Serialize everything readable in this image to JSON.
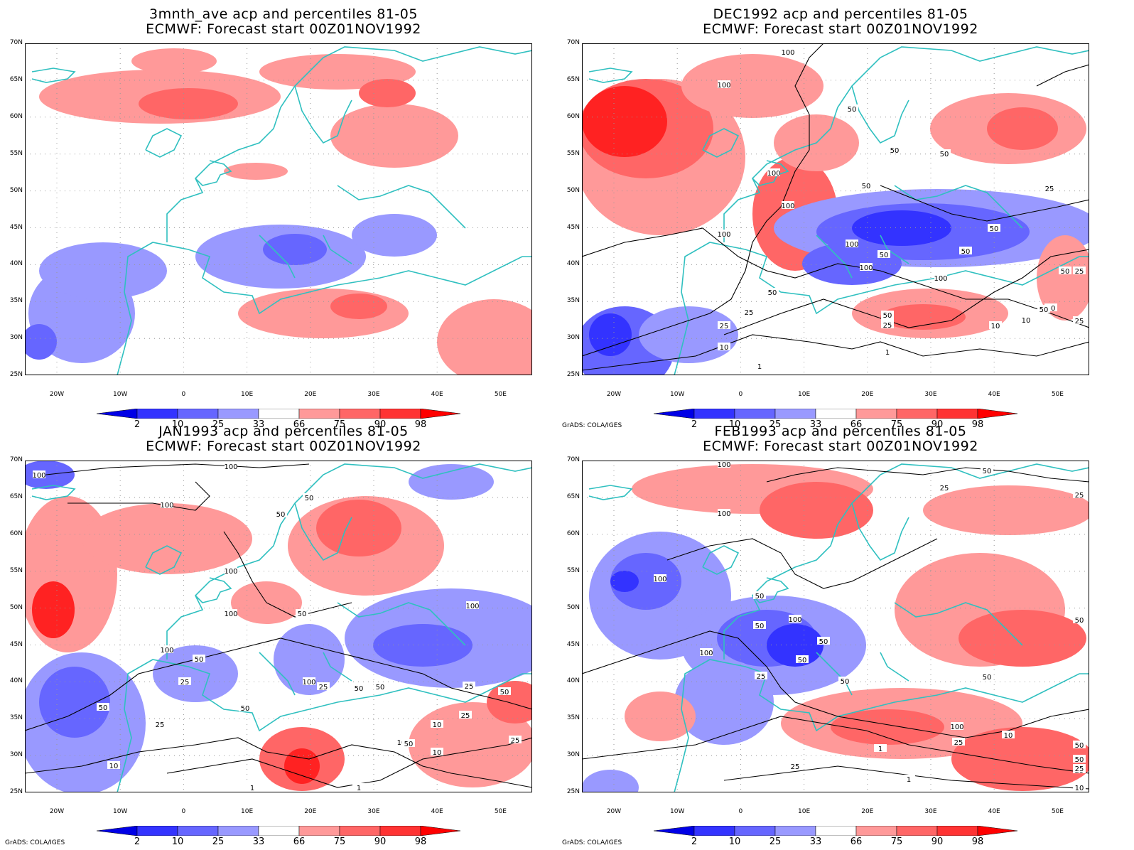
{
  "panels": [
    {
      "title_line1": "3mnth_ave acp and percentiles 81-05",
      "title_line2": "ECMWF: Forecast start 00Z01NOV1992",
      "credit": "",
      "contour_labels": []
    },
    {
      "title_line1": "DEC1992 acp and percentiles 81-05",
      "title_line2": "ECMWF: Forecast start 00Z01NOV1992",
      "credit": "GrADS: COLA/IGES",
      "contour_labels": [
        "100",
        "100",
        "50",
        "50",
        "50",
        "100",
        "100",
        "50",
        "100",
        "25",
        "50",
        "100",
        "50",
        "100",
        "50",
        "25",
        "100",
        "50",
        "50",
        "50",
        "50",
        "25",
        "25",
        "10",
        "10",
        "1",
        "1",
        "10",
        "25",
        "50",
        "25",
        "50"
      ]
    },
    {
      "title_line1": "JAN1993 acp and percentiles 81-05",
      "title_line2": "ECMWF: Forecast start 00Z01NOV1992",
      "credit": "GrADS: COLA/IGES",
      "contour_labels": [
        "100",
        "100",
        "100",
        "100",
        "50",
        "50",
        "100",
        "100",
        "50",
        "100",
        "50",
        "25",
        "100",
        "50",
        "25",
        "50",
        "50",
        "25",
        "25",
        "50",
        "10",
        "1",
        "1",
        "10",
        "50",
        "10",
        "25",
        "10",
        "50",
        "25"
      ]
    },
    {
      "title_line1": "FEB1993 acp and percentiles 81-05",
      "title_line2": "ECMWF: Forecast start 00Z01NOV1992",
      "credit": "GrADS: COLA/IGES",
      "contour_labels": [
        "100",
        "100",
        "100",
        "25",
        "50",
        "25",
        "100",
        "50",
        "50",
        "100",
        "50",
        "50",
        "25",
        "50",
        "50",
        "50",
        "100",
        "10",
        "50",
        "25",
        "10",
        "1",
        "1",
        "25",
        "25",
        "10",
        "50",
        "25",
        "10"
      ]
    }
  ],
  "y_tick_labels": [
    "70N",
    "65N",
    "60N",
    "55N",
    "50N",
    "45N",
    "40N",
    "35N",
    "30N",
    "25N"
  ],
  "x_tick_labels": [
    "20W",
    "10W",
    "0",
    "10E",
    "20E",
    "30E",
    "40E",
    "50E"
  ],
  "colorbar": {
    "labels": [
      "2",
      "10",
      "25",
      "33",
      "66",
      "75",
      "90",
      "98"
    ],
    "colors": [
      "#0000e6",
      "#3333ff",
      "#6666ff",
      "#9999ff",
      "#ffffff",
      "#ff9999",
      "#ff6666",
      "#ff3333",
      "#ff0000"
    ]
  },
  "colors": {
    "coast": "#30c0c0",
    "contour": "#000000",
    "red_light": "#ff9999",
    "red_mid": "#ff6666",
    "red_strong": "#ff2222",
    "blue_light": "#9999ff",
    "blue_mid": "#6666ff",
    "blue_strong": "#3333ff"
  }
}
